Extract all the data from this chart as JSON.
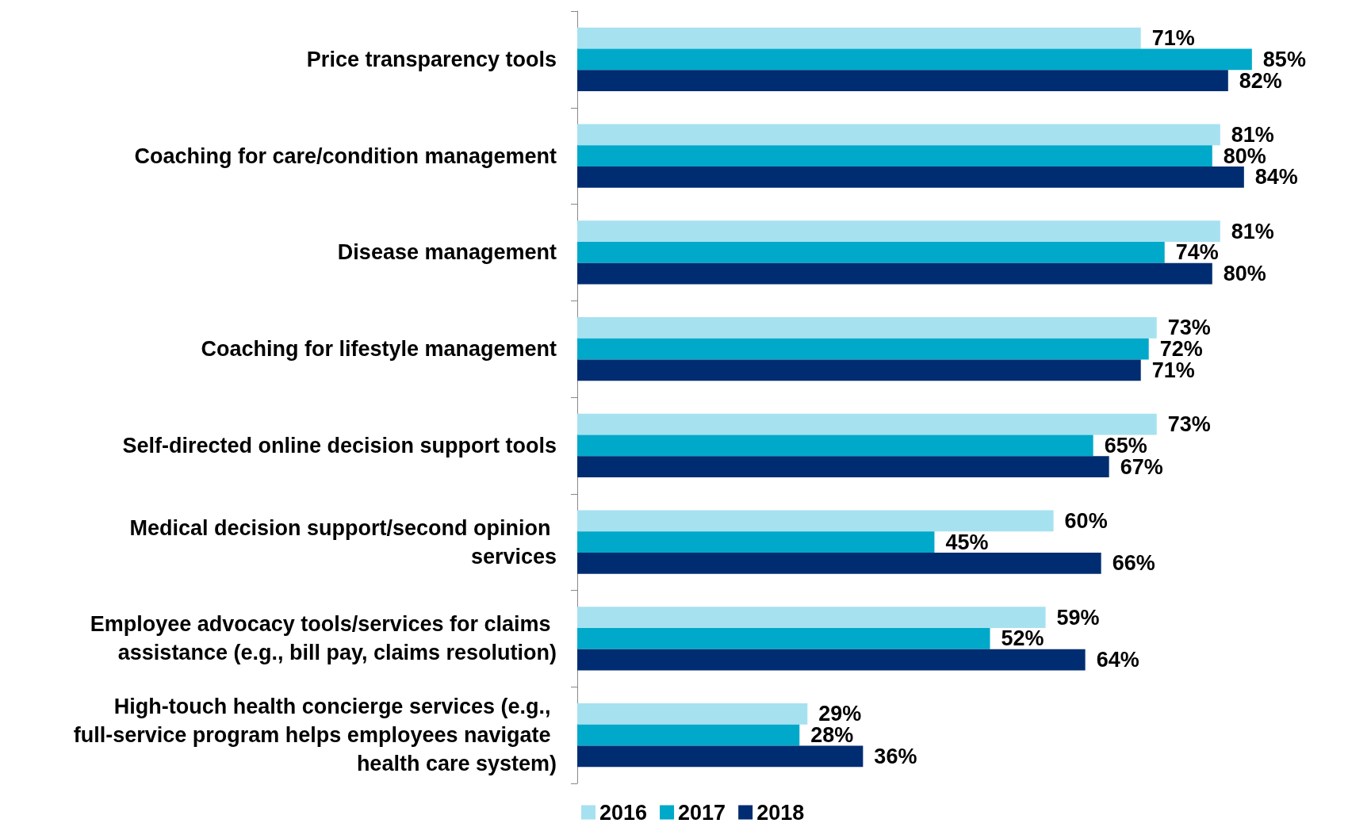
{
  "chart_data": {
    "type": "bar",
    "orientation": "horizontal",
    "legend": "bottom",
    "categories": [
      "Price transparency tools",
      "Coaching for care/condition management",
      "Disease management",
      "Coaching for lifestyle management",
      "Self-directed online decision support tools",
      "Medical decision support/second opinion services",
      "Employee advocacy tools/services for claims assistance (e.g., bill pay, claims resolution)",
      "High-touch health concierge services (e.g., full-service program helps employees navigate health care system)"
    ],
    "series": [
      {
        "name": "2016",
        "color": "#a6e1f0",
        "values": [
          71,
          81,
          81,
          73,
          73,
          60,
          59,
          29
        ],
        "value_labels": [
          "71%",
          "81%",
          "81%",
          "73%",
          "73%",
          "60%",
          "59%",
          "29%"
        ]
      },
      {
        "name": "2017",
        "color": "#00a9c9",
        "values": [
          85,
          80,
          74,
          72,
          65,
          45,
          52,
          28
        ],
        "value_labels": [
          "85%",
          "80%",
          "74%",
          "72%",
          "65%",
          "45%",
          "52%",
          "28%"
        ]
      },
      {
        "name": "2018",
        "color": "#002d72",
        "values": [
          82,
          84,
          80,
          71,
          67,
          66,
          64,
          36
        ],
        "value_labels": [
          "82%",
          "84%",
          "80%",
          "71%",
          "67%",
          "66%",
          "64%",
          "36%"
        ]
      }
    ]
  }
}
